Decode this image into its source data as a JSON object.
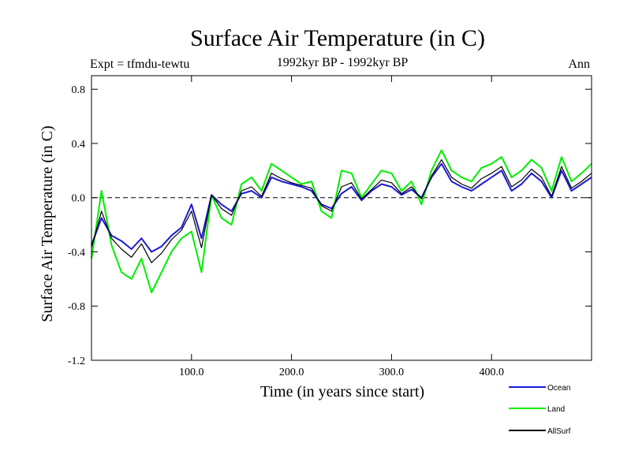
{
  "chart_data": {
    "type": "line",
    "title": "Surface Air Temperature (in C)",
    "subtitle": "1992kyr BP - 1992kyr BP",
    "left_annotation": "Expt = tfmdu-tewtu",
    "right_annotation": "Ann",
    "xlabel": "Time (in years since start)",
    "ylabel": "Surface Air Temperature (in C)",
    "xlim": [
      0,
      500
    ],
    "ylim": [
      -1.2,
      0.9
    ],
    "xticks": [
      100,
      200,
      300,
      400
    ],
    "xtick_labels": [
      "100.0",
      "200.0",
      "300.0",
      "400.0"
    ],
    "yticks": [
      -1.2,
      -0.8,
      -0.4,
      0.0,
      0.4,
      0.8
    ],
    "ytick_labels": [
      "-1.2",
      "-0.8",
      "-0.4",
      "0.0",
      "0.4",
      "0.8"
    ],
    "zero_line": 0.0,
    "legend_position": "bottom-right",
    "series": [
      {
        "name": "Ocean",
        "color": "#1a1ad4",
        "x": [
          0,
          10,
          20,
          30,
          40,
          50,
          60,
          70,
          80,
          90,
          100,
          110,
          120,
          130,
          140,
          150,
          160,
          170,
          180,
          190,
          200,
          210,
          220,
          230,
          240,
          250,
          260,
          270,
          280,
          290,
          300,
          310,
          320,
          330,
          340,
          350,
          360,
          370,
          380,
          390,
          400,
          410,
          420,
          430,
          440,
          450,
          460,
          470,
          480,
          490,
          500
        ],
        "values": [
          -0.35,
          -0.15,
          -0.28,
          -0.32,
          -0.38,
          -0.3,
          -0.4,
          -0.36,
          -0.28,
          -0.22,
          -0.05,
          -0.3,
          0.02,
          -0.05,
          -0.1,
          0.03,
          0.05,
          0.0,
          0.15,
          0.12,
          0.1,
          0.08,
          0.05,
          -0.05,
          -0.08,
          0.03,
          0.08,
          -0.02,
          0.05,
          0.1,
          0.08,
          0.02,
          0.06,
          0.0,
          0.15,
          0.25,
          0.12,
          0.08,
          0.05,
          0.1,
          0.15,
          0.2,
          0.05,
          0.1,
          0.18,
          0.12,
          0.0,
          0.2,
          0.05,
          0.1,
          0.15
        ]
      },
      {
        "name": "Land",
        "color": "#00ee00",
        "x": [
          0,
          10,
          20,
          30,
          40,
          50,
          60,
          70,
          80,
          90,
          100,
          110,
          120,
          130,
          140,
          150,
          160,
          170,
          180,
          190,
          200,
          210,
          220,
          230,
          240,
          250,
          260,
          270,
          280,
          290,
          300,
          310,
          320,
          330,
          340,
          350,
          360,
          370,
          380,
          390,
          400,
          410,
          420,
          430,
          440,
          450,
          460,
          470,
          480,
          490,
          500
        ],
        "values": [
          -0.45,
          0.05,
          -0.35,
          -0.55,
          -0.6,
          -0.45,
          -0.7,
          -0.55,
          -0.4,
          -0.3,
          -0.25,
          -0.55,
          0.02,
          -0.15,
          -0.2,
          0.1,
          0.15,
          0.05,
          0.25,
          0.2,
          0.15,
          0.1,
          0.12,
          -0.1,
          -0.15,
          0.2,
          0.18,
          0.0,
          0.1,
          0.2,
          0.18,
          0.05,
          0.12,
          -0.05,
          0.2,
          0.35,
          0.2,
          0.15,
          0.12,
          0.22,
          0.25,
          0.3,
          0.15,
          0.2,
          0.28,
          0.22,
          0.05,
          0.3,
          0.12,
          0.18,
          0.25
        ]
      },
      {
        "name": "AllSurf",
        "color": "#000000",
        "x": [
          0,
          10,
          20,
          30,
          40,
          50,
          60,
          70,
          80,
          90,
          100,
          110,
          120,
          130,
          140,
          150,
          160,
          170,
          180,
          190,
          200,
          210,
          220,
          230,
          240,
          250,
          260,
          270,
          280,
          290,
          300,
          310,
          320,
          330,
          340,
          350,
          360,
          370,
          380,
          390,
          400,
          410,
          420,
          430,
          440,
          450,
          460,
          470,
          480,
          490,
          500
        ],
        "values": [
          -0.37,
          -0.1,
          -0.3,
          -0.38,
          -0.44,
          -0.34,
          -0.48,
          -0.41,
          -0.31,
          -0.24,
          -0.1,
          -0.37,
          0.02,
          -0.08,
          -0.13,
          0.05,
          0.08,
          0.01,
          0.18,
          0.14,
          0.11,
          0.09,
          0.07,
          -0.06,
          -0.1,
          0.08,
          0.11,
          -0.01,
          0.06,
          0.13,
          0.11,
          0.03,
          0.08,
          -0.01,
          0.16,
          0.28,
          0.15,
          0.1,
          0.07,
          0.14,
          0.18,
          0.23,
          0.08,
          0.13,
          0.21,
          0.15,
          0.01,
          0.23,
          0.07,
          0.12,
          0.18
        ]
      }
    ]
  }
}
